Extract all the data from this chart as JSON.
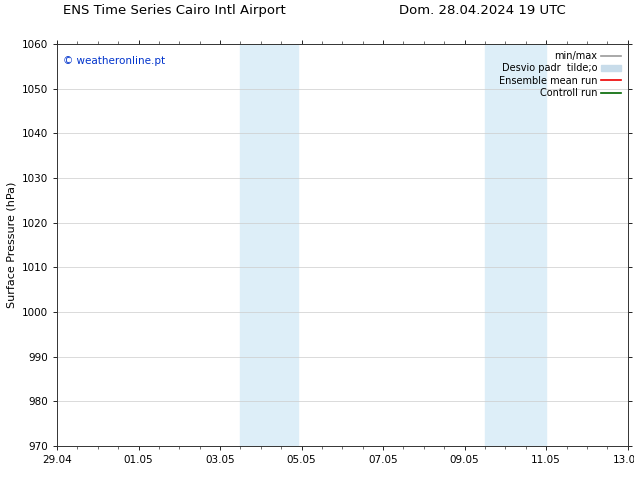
{
  "title_left": "ENS Time Series Cairo Intl Airport",
  "title_right": "Dom. 28.04.2024 19 UTC",
  "ylabel": "Surface Pressure (hPa)",
  "ylim": [
    970,
    1060
  ],
  "yticks": [
    970,
    980,
    990,
    1000,
    1010,
    1020,
    1030,
    1040,
    1050,
    1060
  ],
  "xtick_labels": [
    "29.04",
    "01.05",
    "03.05",
    "05.05",
    "07.05",
    "09.05",
    "11.05",
    "13.05"
  ],
  "xtick_positions": [
    0,
    2,
    4,
    6,
    8,
    10,
    12,
    14
  ],
  "xlim": [
    0,
    14
  ],
  "shaded_regions": [
    {
      "start": 4.5,
      "end": 5.2,
      "color": "#ddeef8"
    },
    {
      "start": 5.2,
      "end": 5.9,
      "color": "#ddeef8"
    },
    {
      "start": 10.5,
      "end": 11.2,
      "color": "#ddeef8"
    },
    {
      "start": 11.2,
      "end": 12.0,
      "color": "#ddeef8"
    }
  ],
  "watermark_text": "© weatheronline.pt",
  "watermark_color": "#0033cc",
  "legend_entries": [
    {
      "label": "min/max",
      "color": "#999999",
      "lw": 1.2,
      "style": "-"
    },
    {
      "label": "Desvio padr  tilde;o",
      "color": "#c8dcea",
      "lw": 5,
      "style": "-"
    },
    {
      "label": "Ensemble mean run",
      "color": "#ee0000",
      "lw": 1.2,
      "style": "-"
    },
    {
      "label": "Controll run",
      "color": "#006600",
      "lw": 1.2,
      "style": "-"
    }
  ],
  "bg_color": "#ffffff",
  "plot_bg_color": "#ffffff",
  "grid_color": "#cccccc",
  "title_fontsize": 9.5,
  "ylabel_fontsize": 8,
  "tick_fontsize": 7.5,
  "legend_fontsize": 7,
  "watermark_fontsize": 7.5
}
